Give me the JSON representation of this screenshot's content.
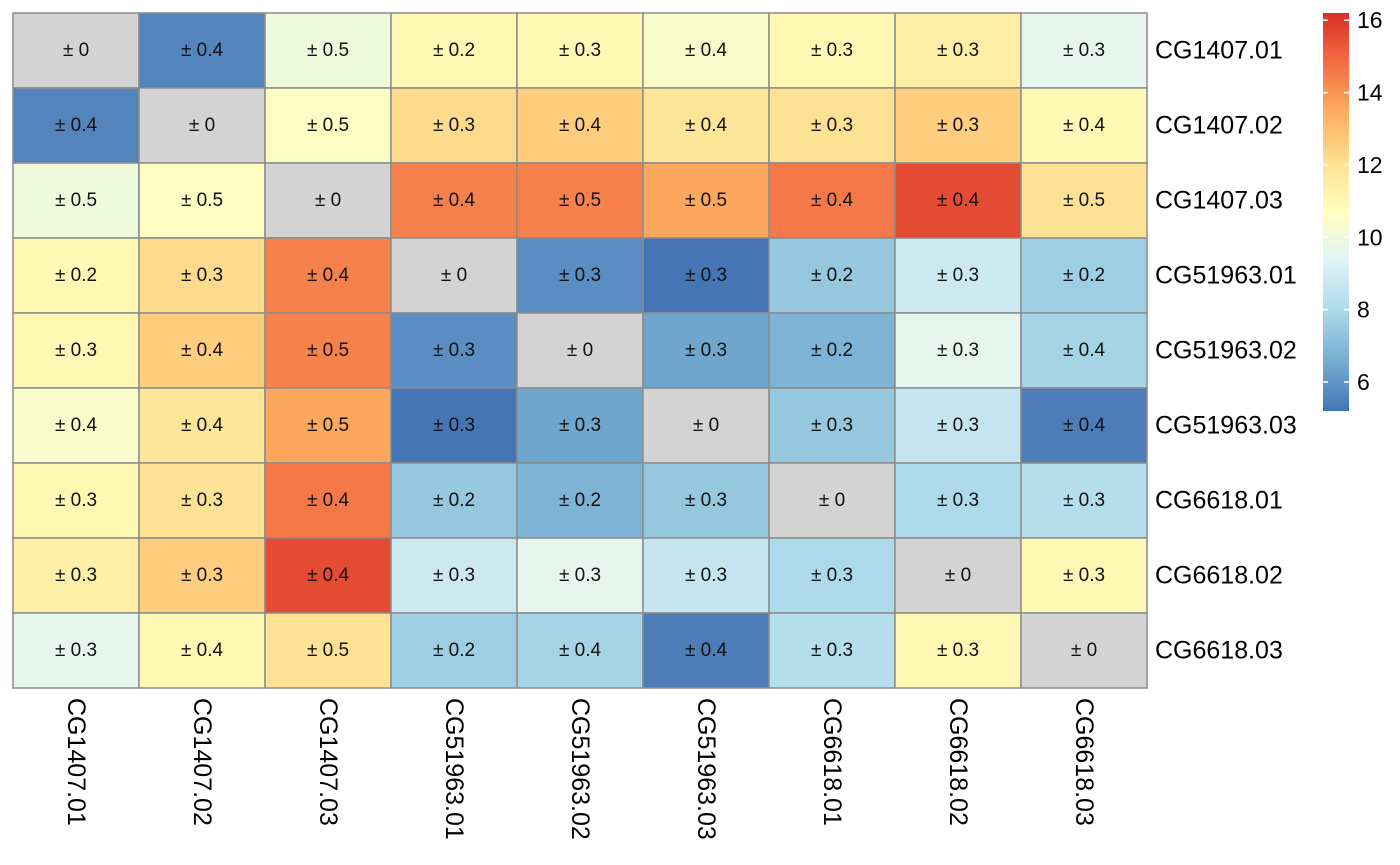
{
  "chart_data": {
    "type": "heatmap",
    "rows": [
      "CG1407.01",
      "CG1407.02",
      "CG1407.03",
      "CG51963.01",
      "CG51963.02",
      "CG51963.03",
      "CG6618.01",
      "CG6618.02",
      "CG6618.03"
    ],
    "columns": [
      "CG1407.01",
      "CG1407.02",
      "CG1407.03",
      "CG51963.01",
      "CG51963.02",
      "CG51963.03",
      "CG6618.01",
      "CG6618.02",
      "CG6618.03"
    ],
    "values": [
      [
        null,
        5.6,
        10.0,
        11.0,
        11.0,
        10.4,
        11.0,
        11.4,
        9.6
      ],
      [
        5.6,
        null,
        10.6,
        12.2,
        12.6,
        11.8,
        12.0,
        12.6,
        11.0
      ],
      [
        10.0,
        10.6,
        null,
        14.4,
        14.4,
        13.6,
        14.6,
        15.6,
        12.0
      ],
      [
        11.0,
        12.2,
        14.4,
        null,
        5.8,
        5.2,
        7.4,
        8.8,
        7.6
      ],
      [
        11.0,
        12.6,
        14.4,
        5.8,
        null,
        6.4,
        6.8,
        9.6,
        7.8
      ],
      [
        10.4,
        11.8,
        13.6,
        5.2,
        6.4,
        null,
        7.4,
        8.6,
        5.4
      ],
      [
        11.0,
        12.0,
        14.6,
        7.4,
        6.8,
        7.4,
        null,
        8.0,
        8.2
      ],
      [
        11.4,
        12.6,
        15.6,
        8.8,
        9.6,
        8.6,
        8.0,
        null,
        11.0
      ],
      [
        9.6,
        11.0,
        12.0,
        7.6,
        7.8,
        5.4,
        8.2,
        11.0,
        null
      ]
    ],
    "cell_labels": [
      [
        "± 0",
        "± 0.4",
        "± 0.5",
        "± 0.2",
        "± 0.3",
        "± 0.4",
        "± 0.3",
        "± 0.3",
        "± 0.3"
      ],
      [
        "± 0.4",
        "± 0",
        "± 0.5",
        "± 0.3",
        "± 0.4",
        "± 0.4",
        "± 0.3",
        "± 0.3",
        "± 0.4"
      ],
      [
        "± 0.5",
        "± 0.5",
        "± 0",
        "± 0.4",
        "± 0.5",
        "± 0.5",
        "± 0.4",
        "± 0.4",
        "± 0.5"
      ],
      [
        "± 0.2",
        "± 0.3",
        "± 0.4",
        "± 0",
        "± 0.3",
        "± 0.3",
        "± 0.2",
        "± 0.3",
        "± 0.2"
      ],
      [
        "± 0.3",
        "± 0.4",
        "± 0.5",
        "± 0.3",
        "± 0",
        "± 0.3",
        "± 0.2",
        "± 0.3",
        "± 0.4"
      ],
      [
        "± 0.4",
        "± 0.4",
        "± 0.5",
        "± 0.3",
        "± 0.3",
        "± 0",
        "± 0.3",
        "± 0.3",
        "± 0.4"
      ],
      [
        "± 0.3",
        "± 0.3",
        "± 0.4",
        "± 0.2",
        "± 0.2",
        "± 0.3",
        "± 0",
        "± 0.3",
        "± 0.3"
      ],
      [
        "± 0.3",
        "± 0.3",
        "± 0.4",
        "± 0.3",
        "± 0.3",
        "± 0.3",
        "± 0.3",
        "± 0",
        "± 0.3"
      ],
      [
        "± 0.3",
        "± 0.4",
        "± 0.5",
        "± 0.2",
        "± 0.4",
        "± 0.4",
        "± 0.3",
        "± 0.3",
        "± 0"
      ]
    ],
    "color_scale": {
      "min": 5.2,
      "max": 16.2,
      "ticks": [
        6,
        8,
        10,
        12,
        14,
        16
      ],
      "palette": [
        "#4575B4",
        "#74ADD1",
        "#ABD9E9",
        "#E0F3F8",
        "#FFFFBF",
        "#FEE090",
        "#FDAE61",
        "#F46D43",
        "#D73027"
      ],
      "na_color": "#D3D3D3"
    },
    "legend": "right",
    "grid": true,
    "cell_border_color": "#8C8C8C"
  }
}
